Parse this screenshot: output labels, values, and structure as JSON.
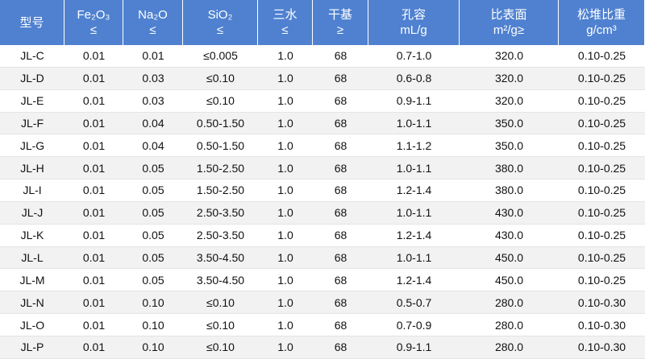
{
  "table": {
    "header": [
      [
        "型号"
      ],
      [
        "Fe₂O₃",
        "≤"
      ],
      [
        "Na₂O",
        "≤"
      ],
      [
        "SiO₂",
        "≤"
      ],
      [
        "三水",
        "≤"
      ],
      [
        "干基",
        "≥"
      ],
      [
        "孔容",
        "mL/g"
      ],
      [
        "比表面",
        "m²/g≥"
      ],
      [
        "松堆比重",
        "g/cm³"
      ]
    ],
    "rows": [
      [
        "JL-C",
        "0.01",
        "0.01",
        "≤0.005",
        "1.0",
        "68",
        "0.7-1.0",
        "320.0",
        "0.10-0.25"
      ],
      [
        "JL-D",
        "0.01",
        "0.03",
        "≤0.10",
        "1.0",
        "68",
        "0.6-0.8",
        "320.0",
        "0.10-0.25"
      ],
      [
        "JL-E",
        "0.01",
        "0.03",
        "≤0.10",
        "1.0",
        "68",
        "0.9-1.1",
        "320.0",
        "0.10-0.25"
      ],
      [
        "JL-F",
        "0.01",
        "0.04",
        "0.50-1.50",
        "1.0",
        "68",
        "1.0-1.1",
        "350.0",
        "0.10-0.25"
      ],
      [
        "JL-G",
        "0.01",
        "0.04",
        "0.50-1.50",
        "1.0",
        "68",
        "1.1-1.2",
        "350.0",
        "0.10-0.25"
      ],
      [
        "JL-H",
        "0.01",
        "0.05",
        "1.50-2.50",
        "1.0",
        "68",
        "1.0-1.1",
        "380.0",
        "0.10-0.25"
      ],
      [
        "JL-I",
        "0.01",
        "0.05",
        "1.50-2.50",
        "1.0",
        "68",
        "1.2-1.4",
        "380.0",
        "0.10-0.25"
      ],
      [
        "JL-J",
        "0.01",
        "0.05",
        "2.50-3.50",
        "1.0",
        "68",
        "1.0-1.1",
        "430.0",
        "0.10-0.25"
      ],
      [
        "JL-K",
        "0.01",
        "0.05",
        "2.50-3.50",
        "1.0",
        "68",
        "1.2-1.4",
        "430.0",
        "0.10-0.25"
      ],
      [
        "JL-L",
        "0.01",
        "0.05",
        "3.50-4.50",
        "1.0",
        "68",
        "1.0-1.1",
        "450.0",
        "0.10-0.25"
      ],
      [
        "JL-M",
        "0.01",
        "0.05",
        "3.50-4.50",
        "1.0",
        "68",
        "1.2-1.4",
        "450.0",
        "0.10-0.25"
      ],
      [
        "JL-N",
        "0.01",
        "0.10",
        "≤0.10",
        "1.0",
        "68",
        "0.5-0.7",
        "280.0",
        "0.10-0.30"
      ],
      [
        "JL-O",
        "0.01",
        "0.10",
        "≤0.10",
        "1.0",
        "68",
        "0.7-0.9",
        "280.0",
        "0.10-0.30"
      ],
      [
        "JL-P",
        "0.01",
        "0.10",
        "≤0.10",
        "1.0",
        "68",
        "0.9-1.1",
        "280.0",
        "0.10-0.30"
      ]
    ]
  }
}
